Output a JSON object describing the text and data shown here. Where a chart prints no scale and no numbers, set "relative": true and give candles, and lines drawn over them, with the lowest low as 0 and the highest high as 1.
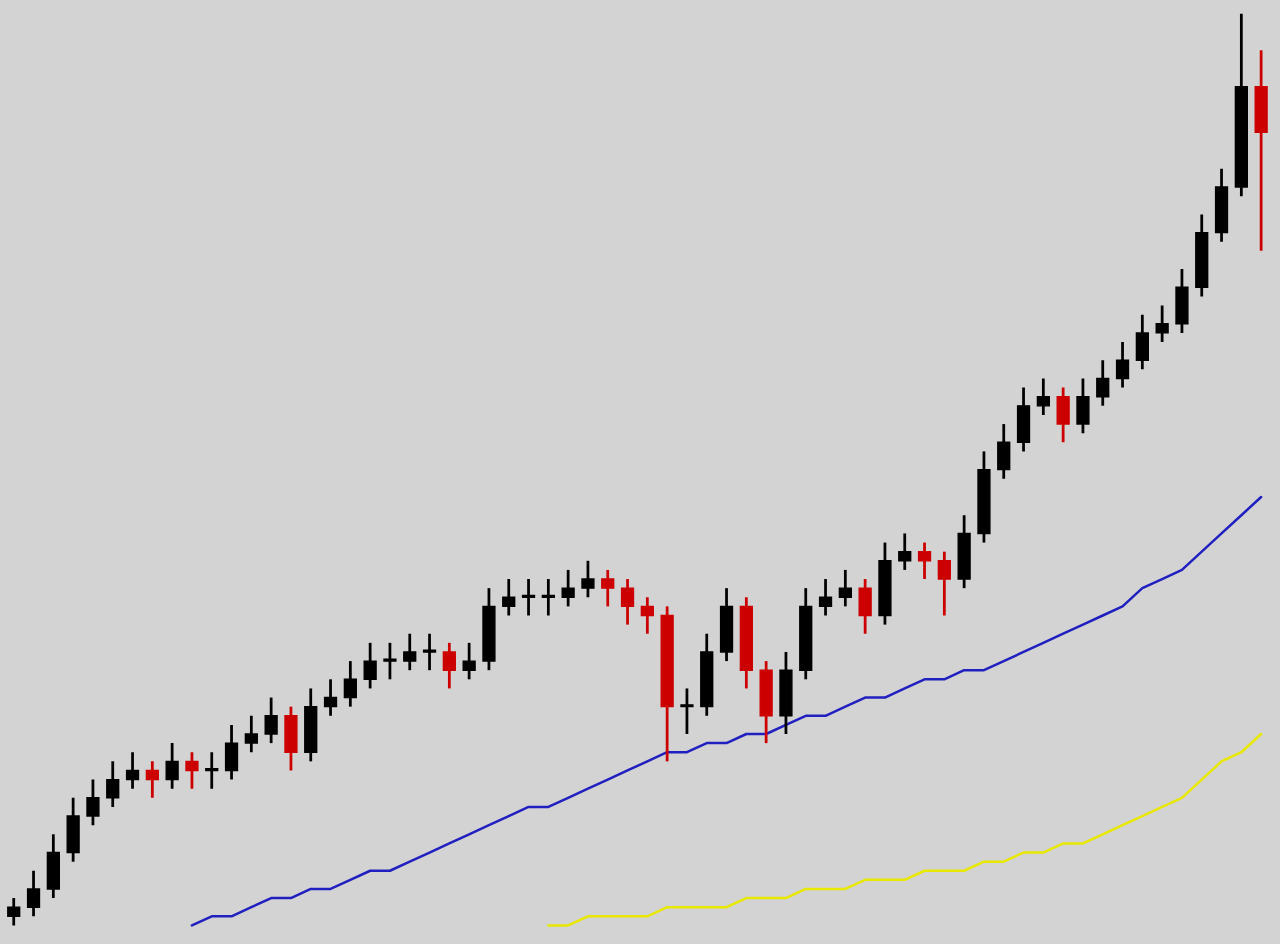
{
  "chart_data": {
    "type": "candlestick",
    "relative": true,
    "categories": [
      null,
      null,
      null,
      null,
      null,
      null,
      null,
      null,
      null,
      null,
      null,
      null,
      null,
      null,
      null,
      null,
      null,
      null,
      null,
      null,
      null,
      null,
      null,
      null,
      null,
      null,
      null,
      null,
      null,
      null,
      null,
      null,
      null,
      null,
      null,
      null,
      null,
      null,
      null,
      null,
      null,
      null,
      null,
      null,
      null,
      null,
      null,
      null,
      null,
      null,
      null,
      null,
      null,
      null,
      null,
      null,
      null,
      null,
      null,
      null,
      null,
      null,
      null,
      null
    ],
    "ohlc": [
      [
        0.01,
        0.03,
        0,
        0.02
      ],
      [
        0.02,
        0.06,
        0.01,
        0.04
      ],
      [
        0.04,
        0.1,
        0.03,
        0.08
      ],
      [
        0.08,
        0.14,
        0.07,
        0.12
      ],
      [
        0.12,
        0.16,
        0.11,
        0.14
      ],
      [
        0.14,
        0.18,
        0.13,
        0.16
      ],
      [
        0.16,
        0.19,
        0.15,
        0.17
      ],
      [
        0.17,
        0.18,
        0.14,
        0.16
      ],
      [
        0.16,
        0.2,
        0.15,
        0.18
      ],
      [
        0.18,
        0.19,
        0.15,
        0.17
      ],
      [
        0.17,
        0.19,
        0.15,
        0.17
      ],
      [
        0.17,
        0.22,
        0.16,
        0.2
      ],
      [
        0.2,
        0.23,
        0.19,
        0.21
      ],
      [
        0.21,
        0.25,
        0.2,
        0.23
      ],
      [
        0.23,
        0.24,
        0.17,
        0.19
      ],
      [
        0.19,
        0.26,
        0.18,
        0.24
      ],
      [
        0.24,
        0.27,
        0.23,
        0.25
      ],
      [
        0.25,
        0.29,
        0.24,
        0.27
      ],
      [
        0.27,
        0.31,
        0.26,
        0.29
      ],
      [
        0.29,
        0.31,
        0.27,
        0.29
      ],
      [
        0.29,
        0.32,
        0.28,
        0.3
      ],
      [
        0.3,
        0.32,
        0.28,
        0.3
      ],
      [
        0.3,
        0.31,
        0.26,
        0.28
      ],
      [
        0.28,
        0.31,
        0.27,
        0.29
      ],
      [
        0.29,
        0.37,
        0.28,
        0.35
      ],
      [
        0.35,
        0.38,
        0.34,
        0.36
      ],
      [
        0.36,
        0.38,
        0.34,
        0.36
      ],
      [
        0.36,
        0.38,
        0.34,
        0.36
      ],
      [
        0.36,
        0.39,
        0.35,
        0.37
      ],
      [
        0.37,
        0.4,
        0.36,
        0.38
      ],
      [
        0.38,
        0.39,
        0.35,
        0.37
      ],
      [
        0.37,
        0.38,
        0.33,
        0.35
      ],
      [
        0.35,
        0.36,
        0.32,
        0.34
      ],
      [
        0.34,
        0.35,
        0.18,
        0.24
      ],
      [
        0.24,
        0.26,
        0.21,
        0.24
      ],
      [
        0.24,
        0.32,
        0.23,
        0.3
      ],
      [
        0.3,
        0.37,
        0.29,
        0.35
      ],
      [
        0.35,
        0.36,
        0.26,
        0.28
      ],
      [
        0.28,
        0.29,
        0.2,
        0.23
      ],
      [
        0.23,
        0.3,
        0.21,
        0.28
      ],
      [
        0.28,
        0.37,
        0.27,
        0.35
      ],
      [
        0.35,
        0.38,
        0.34,
        0.36
      ],
      [
        0.36,
        0.39,
        0.35,
        0.37
      ],
      [
        0.37,
        0.38,
        0.32,
        0.34
      ],
      [
        0.34,
        0.42,
        0.33,
        0.4
      ],
      [
        0.4,
        0.43,
        0.39,
        0.41
      ],
      [
        0.41,
        0.42,
        0.38,
        0.4
      ],
      [
        0.4,
        0.41,
        0.34,
        0.38
      ],
      [
        0.38,
        0.45,
        0.37,
        0.43
      ],
      [
        0.43,
        0.52,
        0.42,
        0.5
      ],
      [
        0.5,
        0.55,
        0.49,
        0.53
      ],
      [
        0.53,
        0.59,
        0.52,
        0.57
      ],
      [
        0.57,
        0.6,
        0.56,
        0.58
      ],
      [
        0.58,
        0.59,
        0.53,
        0.55
      ],
      [
        0.55,
        0.6,
        0.54,
        0.58
      ],
      [
        0.58,
        0.62,
        0.57,
        0.6
      ],
      [
        0.6,
        0.64,
        0.59,
        0.62
      ],
      [
        0.62,
        0.67,
        0.61,
        0.65
      ],
      [
        0.65,
        0.68,
        0.64,
        0.66
      ],
      [
        0.66,
        0.72,
        0.65,
        0.7
      ],
      [
        0.7,
        0.78,
        0.69,
        0.76
      ],
      [
        0.76,
        0.83,
        0.75,
        0.81
      ],
      [
        0.81,
        1.0,
        0.8,
        0.92
      ],
      [
        0.92,
        0.96,
        0.74,
        0.87
      ]
    ],
    "colors": [
      "#000000",
      "#000000",
      "#000000",
      "#000000",
      "#000000",
      "#000000",
      "#000000",
      "#cc0000",
      "#000000",
      "#cc0000",
      "#000000",
      "#000000",
      "#000000",
      "#000000",
      "#cc0000",
      "#000000",
      "#000000",
      "#000000",
      "#000000",
      "#000000",
      "#000000",
      "#000000",
      "#cc0000",
      "#000000",
      "#000000",
      "#000000",
      "#000000",
      "#000000",
      "#000000",
      "#000000",
      "#cc0000",
      "#cc0000",
      "#cc0000",
      "#cc0000",
      "#000000",
      "#000000",
      "#000000",
      "#cc0000",
      "#cc0000",
      "#000000",
      "#000000",
      "#000000",
      "#000000",
      "#cc0000",
      "#000000",
      "#000000",
      "#cc0000",
      "#cc0000",
      "#000000",
      "#000000",
      "#000000",
      "#000000",
      "#000000",
      "#cc0000",
      "#000000",
      "#000000",
      "#000000",
      "#000000",
      "#000000",
      "#000000",
      "#000000",
      "#000000",
      "#000000",
      "#cc0000"
    ],
    "series": [
      {
        "type": "line",
        "color": "#2020c0",
        "values": [
          null,
          null,
          null,
          null,
          null,
          null,
          null,
          null,
          null,
          0,
          0.01,
          0.01,
          0.02,
          0.03,
          0.03,
          0.04,
          0.04,
          0.05,
          0.06,
          0.06,
          0.07,
          0.08,
          0.09,
          0.1,
          0.11,
          0.12,
          0.13,
          0.13,
          0.14,
          0.15,
          0.16,
          0.17,
          0.18,
          0.19,
          0.19,
          0.2,
          0.2,
          0.21,
          0.21,
          0.22,
          0.23,
          0.23,
          0.24,
          0.25,
          0.25,
          0.26,
          0.27,
          0.27,
          0.28,
          0.28,
          0.29,
          0.3,
          0.31,
          0.32,
          0.33,
          0.34,
          0.35,
          0.37,
          0.38,
          0.39,
          0.41,
          0.43,
          0.45,
          0.47
        ]
      },
      {
        "type": "line",
        "color": "#e8e800",
        "values": [
          null,
          null,
          null,
          null,
          null,
          null,
          null,
          null,
          null,
          null,
          null,
          null,
          null,
          null,
          null,
          null,
          null,
          null,
          null,
          null,
          null,
          null,
          null,
          null,
          null,
          null,
          null,
          0,
          0,
          0.01,
          0.01,
          0.01,
          0.01,
          0.02,
          0.02,
          0.02,
          0.02,
          0.03,
          0.03,
          0.03,
          0.04,
          0.04,
          0.04,
          0.05,
          0.05,
          0.05,
          0.06,
          0.06,
          0.06,
          0.07,
          0.07,
          0.08,
          0.08,
          0.09,
          0.09,
          0.1,
          0.11,
          0.12,
          0.13,
          0.14,
          0.16,
          0.18,
          0.19,
          0.21
        ]
      }
    ]
  }
}
